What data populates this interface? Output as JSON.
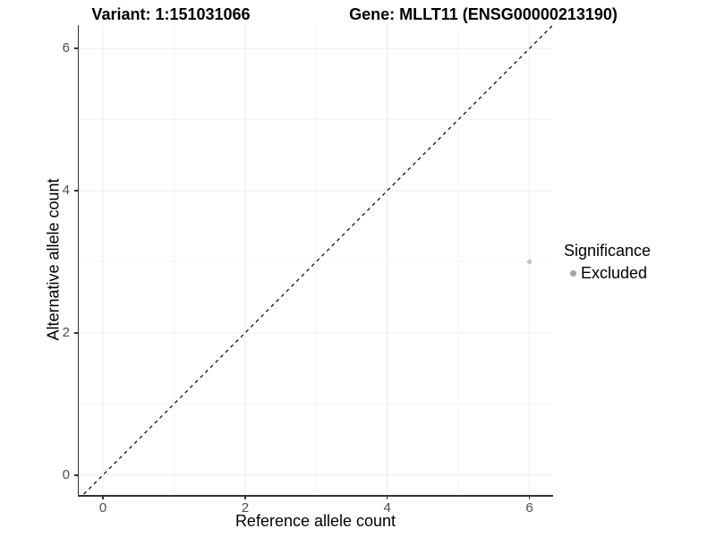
{
  "header": {
    "variant_title": "Variant: 1:151031066",
    "gene_title": "Gene: MLLT11 (ENSG00000213190)"
  },
  "legend": {
    "title": "Significance",
    "items": [
      {
        "label": "Excluded",
        "color": "#a6a6a6"
      }
    ]
  },
  "chart_data": {
    "type": "scatter",
    "title": "Variant: 1:151031066   Gene: MLLT11 (ENSG00000213190)",
    "xlabel": "Reference allele count",
    "ylabel": "Alternative allele count",
    "xlim": [
      -0.34,
      6.32
    ],
    "ylim": [
      -0.28,
      6.33
    ],
    "x_major_ticks": [
      0,
      2,
      4,
      6
    ],
    "y_major_ticks": [
      0,
      2,
      4,
      6
    ],
    "x_minor_gridlines": [
      1,
      3,
      5
    ],
    "y_minor_gridlines": [
      1,
      3,
      5
    ],
    "grid": {
      "on": true,
      "major_color": "#ebebeb",
      "minor_color": "#f5f5f5"
    },
    "identity_line": {
      "equation": "y = x",
      "slope": 1,
      "intercept": 0,
      "style": "dashed",
      "color": "#000000"
    },
    "series": [
      {
        "name": "Excluded",
        "color": "#bebebe",
        "points": [
          {
            "x": 6,
            "y": 3
          }
        ]
      }
    ],
    "legend_position": "right",
    "legend_title": "Significance"
  }
}
